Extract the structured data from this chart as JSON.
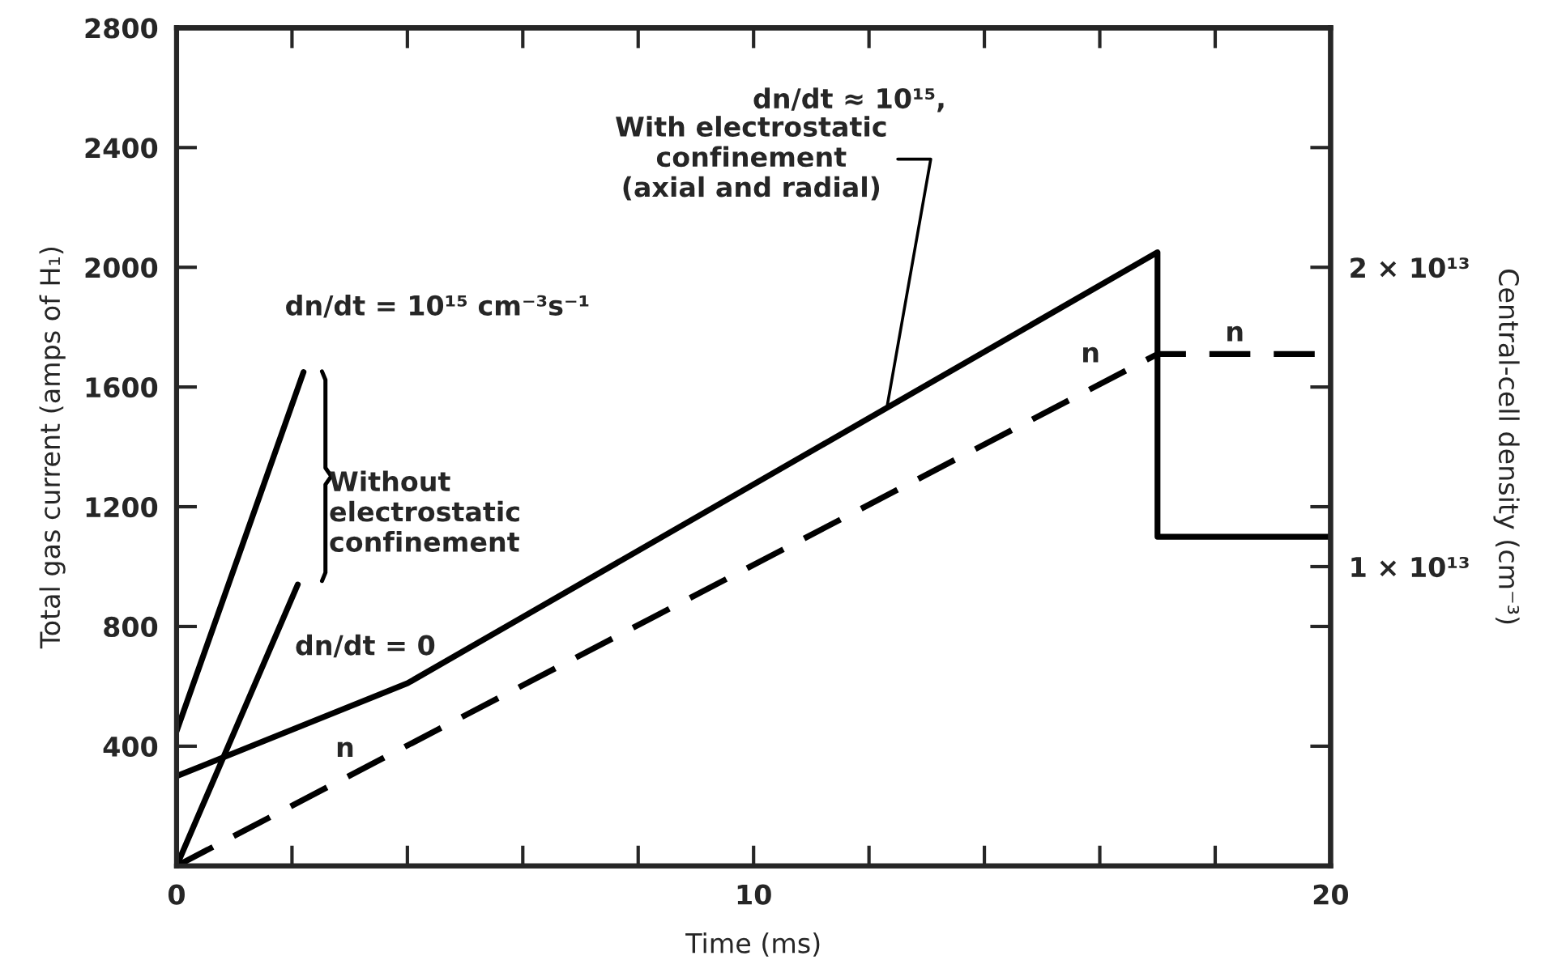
{
  "chart_data": {
    "type": "line",
    "xlabel": "Time (ms)",
    "ylabel": "Total gas current (amps of H₁)",
    "y2label": "Central-cell density (cm⁻³)",
    "xlim": [
      0,
      20
    ],
    "xticks": [
      0,
      {
        "value": 2,
        "label": null
      },
      {
        "value": 4,
        "label": null
      },
      {
        "value": 6,
        "label": null
      },
      {
        "value": 8,
        "label": null
      },
      10,
      {
        "value": 12,
        "label": null
      },
      {
        "value": 14,
        "label": null
      },
      {
        "value": 16,
        "label": null
      },
      {
        "value": 18,
        "label": null
      },
      20
    ],
    "ylim": [
      0,
      2800
    ],
    "yticks": [
      {
        "value": 0,
        "label": null
      },
      400,
      800,
      1200,
      1600,
      2000,
      2400,
      2800
    ],
    "y2lim": [
      0,
      28000000000000.0
    ],
    "y2ticks": [
      {
        "value": 4000000000000.0,
        "label": null
      },
      {
        "value": 8000000000000.0,
        "label": null
      },
      {
        "value": 10000000000000.0,
        "label": "1 × 10¹³"
      },
      {
        "value": 12000000000000.0,
        "label": null
      },
      {
        "value": 16000000000000.0,
        "label": null
      },
      {
        "value": 20000000000000.0,
        "label": "2 × 10¹³"
      },
      {
        "value": 24000000000000.0,
        "label": null
      }
    ],
    "grid": false,
    "legend": false,
    "series": [
      {
        "color": "#000000",
        "line_style": "solid",
        "x": [
          0,
          2.2
        ],
        "values": [
          450,
          1650
        ]
      },
      {
        "color": "#000000",
        "line_style": "solid",
        "x": [
          0,
          2.1
        ],
        "values": [
          0,
          940
        ]
      },
      {
        "color": "#000000",
        "line_style": "solid",
        "x": [
          0,
          4,
          17,
          17,
          20
        ],
        "values": [
          300,
          610,
          2050,
          1100,
          1100
        ]
      },
      {
        "color": "#000000",
        "line_style": "dashed",
        "axis": "y2",
        "x": [
          0,
          17,
          20
        ],
        "values": [
          0,
          17100000000000.0,
          17100000000000.0
        ]
      }
    ],
    "annotations": [
      "dn/dt = 10¹⁵ cm⁻³s⁻¹",
      "Without\nelectrostatic\nconfinement",
      {
        "text": "dn/dt = 0",
        "x": 2.1,
        "y": 940
      },
      "dn/dt ≈ 10¹⁵,",
      {
        "text": "With electrostatic\nconfinement\n(axial and radial)",
        "x": 12.3,
        "y": 1520
      },
      "n",
      "n",
      "n"
    ]
  }
}
